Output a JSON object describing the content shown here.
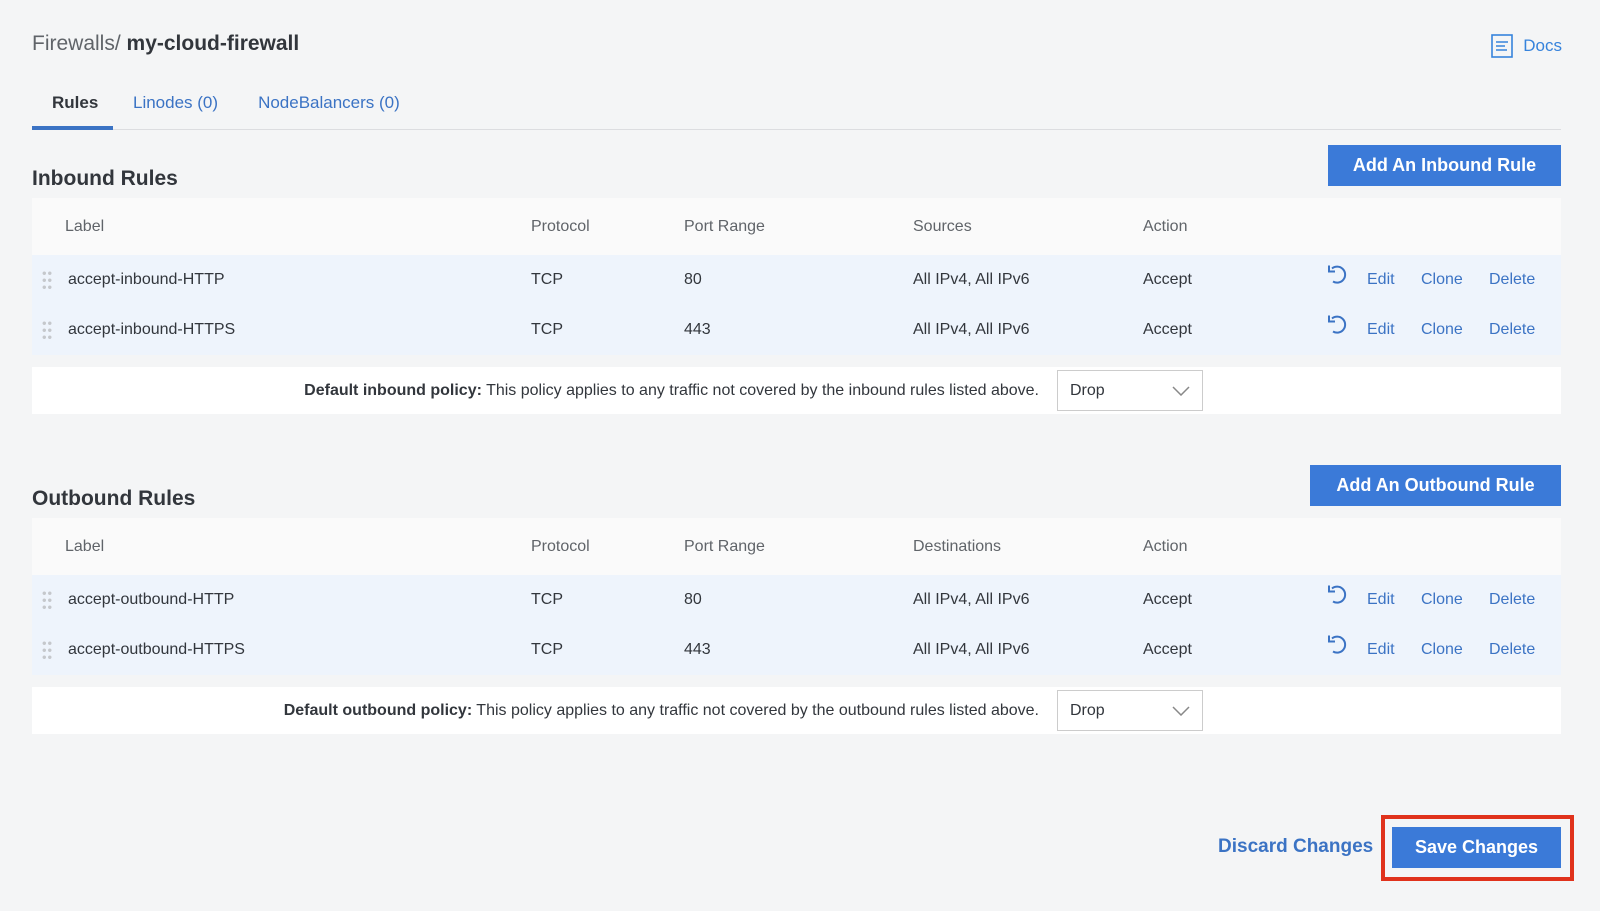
{
  "breadcrumb": {
    "parent": "Firewalls",
    "separator": "/",
    "current": "my-cloud-firewall"
  },
  "docs_label": "Docs",
  "tabs": [
    {
      "label": "Rules"
    },
    {
      "label": "Linodes (0)"
    },
    {
      "label": "NodeBalancers (0)"
    }
  ],
  "inbound": {
    "title": "Inbound Rules",
    "add_label": "Add An Inbound Rule",
    "headers": [
      "Label",
      "Protocol",
      "Port Range",
      "Sources",
      "Action"
    ],
    "rows": [
      {
        "label": "accept-inbound-HTTP",
        "protocol": "TCP",
        "ports": "80",
        "addresses": "All IPv4, All IPv6",
        "action": "Accept"
      },
      {
        "label": "accept-inbound-HTTPS",
        "protocol": "TCP",
        "ports": "443",
        "addresses": "All IPv4, All IPv6",
        "action": "Accept"
      }
    ],
    "policy_bold": "Default inbound policy:",
    "policy_text": " This policy applies to any traffic not covered by the inbound rules listed above.",
    "policy_value": "Drop"
  },
  "outbound": {
    "title": "Outbound Rules",
    "add_label": "Add An Outbound Rule",
    "headers": [
      "Label",
      "Protocol",
      "Port Range",
      "Destinations",
      "Action"
    ],
    "rows": [
      {
        "label": "accept-outbound-HTTP",
        "protocol": "TCP",
        "ports": "80",
        "addresses": "All IPv4, All IPv6",
        "action": "Accept"
      },
      {
        "label": "accept-outbound-HTTPS",
        "protocol": "TCP",
        "ports": "443",
        "addresses": "All IPv4, All IPv6",
        "action": "Accept"
      }
    ],
    "policy_bold": "Default outbound policy:",
    "policy_text": " This policy applies to any traffic not covered by the outbound rules listed above.",
    "policy_value": "Drop"
  },
  "row_actions": {
    "undo_icon": "undo-icon",
    "edit": "Edit",
    "clone": "Clone",
    "delete": "Delete"
  },
  "footer": {
    "discard": "Discard Changes",
    "save": "Save Changes"
  },
  "colors": {
    "accent": "#3b7ad8",
    "highlight": "#e0321c"
  }
}
